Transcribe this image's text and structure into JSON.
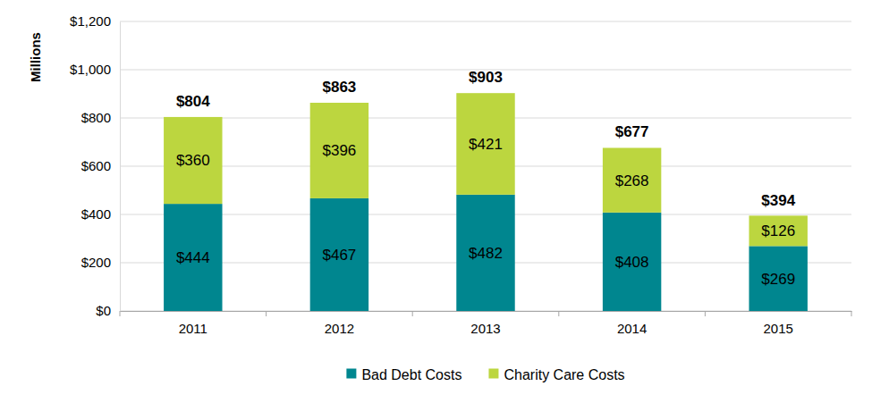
{
  "chart_data": {
    "type": "bar",
    "stacked": true,
    "data_labels": true,
    "grid": true,
    "legend": "bottom",
    "y_label": "Millions",
    "categories": [
      "2011",
      "2012",
      "2013",
      "2014",
      "2015"
    ],
    "series": [
      {
        "name": "Bad Debt Costs",
        "color": "#00868f",
        "values": [
          444,
          467,
          482,
          408,
          269
        ],
        "value_labels": [
          "$444",
          "$467",
          "$482",
          "$408",
          "$269"
        ]
      },
      {
        "name": "Charity Care Costs",
        "color": "#bcd63f",
        "values": [
          360,
          396,
          421,
          268,
          126
        ],
        "value_labels": [
          "$360",
          "$396",
          "$421",
          "$268",
          "$126"
        ]
      }
    ],
    "totals": [
      804,
      863,
      903,
      677,
      394
    ],
    "total_labels": [
      "$804",
      "$863",
      "$903",
      "$677",
      "$394"
    ],
    "ylim": [
      0,
      1200
    ],
    "yticks": [
      {
        "value": 0,
        "label": "$0"
      },
      {
        "value": 200,
        "label": "$200"
      },
      {
        "value": 400,
        "label": "$400"
      },
      {
        "value": 600,
        "label": "$600"
      },
      {
        "value": 800,
        "label": "$800"
      },
      {
        "value": 1000,
        "label": "$1,000"
      },
      {
        "value": 1200,
        "label": "$1,200"
      }
    ]
  }
}
